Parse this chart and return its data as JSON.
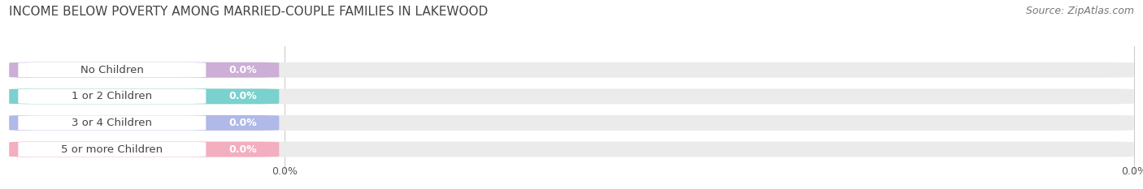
{
  "title": "INCOME BELOW POVERTY AMONG MARRIED-COUPLE FAMILIES IN LAKEWOOD",
  "source": "Source: ZipAtlas.com",
  "categories": [
    "No Children",
    "1 or 2 Children",
    "3 or 4 Children",
    "5 or more Children"
  ],
  "values": [
    0.0,
    0.0,
    0.0,
    0.0
  ],
  "bar_colors": [
    "#c9a8d4",
    "#6ecfca",
    "#aab4e8",
    "#f4a8bc"
  ],
  "bar_bg_color": "#ebebeb",
  "white_label_bg": "#ffffff",
  "title_fontsize": 11,
  "source_fontsize": 9,
  "tick_fontsize": 9,
  "label_fontsize": 9.5,
  "value_fontsize": 9,
  "background_color": "#ffffff",
  "grid_color": "#cccccc",
  "text_color": "#555555",
  "title_color": "#444444"
}
